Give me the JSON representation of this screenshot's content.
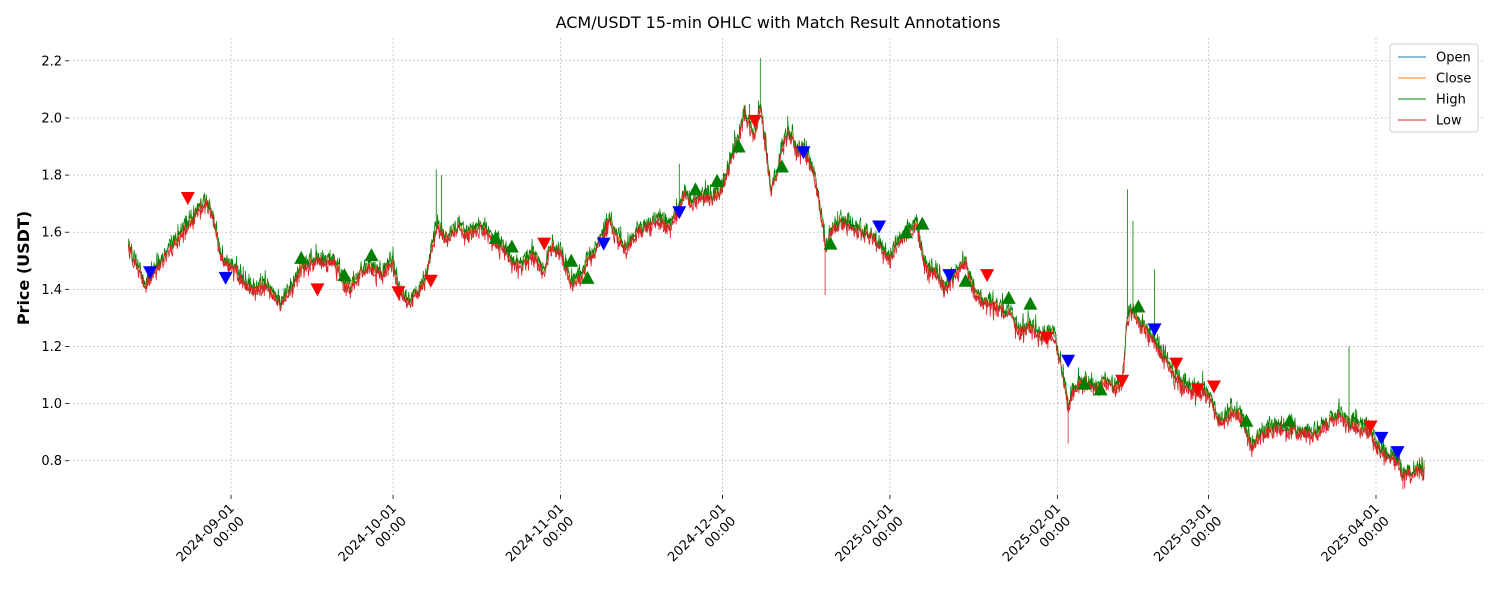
{
  "chart_data": {
    "type": "line",
    "title": "ACM/USDT 15-min OHLC with Match Result Annotations",
    "xlabel": "",
    "ylabel": "Price (USDT)",
    "xlim": [
      "2024-08-02",
      "2025-04-21"
    ],
    "ylim": [
      0.68,
      2.28
    ],
    "y_ticks": [
      0.8,
      1.0,
      1.2,
      1.4,
      1.6,
      1.8,
      2.0,
      2.2
    ],
    "y_tick_labels": [
      "0.8",
      "1.0",
      "1.2",
      "1.4",
      "1.6",
      "1.8",
      "2.0",
      "2.2"
    ],
    "x_ticks": [
      "2024-09-01",
      "2024-10-01",
      "2024-11-01",
      "2024-12-01",
      "2025-01-01",
      "2025-02-01",
      "2025-03-01",
      "2025-04-01"
    ],
    "x_tick_labels": [
      [
        "2024-09-01",
        "00:00"
      ],
      [
        "2024-10-01",
        "00:00"
      ],
      [
        "2024-11-01",
        "00:00"
      ],
      [
        "2024-12-01",
        "00:00"
      ],
      [
        "2025-01-01",
        "00:00"
      ],
      [
        "2025-02-01",
        "00:00"
      ],
      [
        "2025-03-01",
        "00:00"
      ],
      [
        "2025-04-01",
        "00:00"
      ]
    ],
    "grid": true,
    "legend_position": "top-right",
    "series": [
      {
        "name": "Open",
        "color": "#1f77b4"
      },
      {
        "name": "Close",
        "color": "#ff7f0e"
      },
      {
        "name": "High",
        "color": "#008000"
      },
      {
        "name": "Low",
        "color": "#d62728"
      }
    ],
    "price_path": [
      [
        "2024-08-13",
        1.55
      ],
      [
        "2024-08-14",
        1.5
      ],
      [
        "2024-08-15",
        1.47
      ],
      [
        "2024-08-16",
        1.42
      ],
      [
        "2024-08-17",
        1.45
      ],
      [
        "2024-08-18",
        1.47
      ],
      [
        "2024-08-19",
        1.5
      ],
      [
        "2024-08-21",
        1.55
      ],
      [
        "2024-08-23",
        1.6
      ],
      [
        "2024-08-25",
        1.65
      ],
      [
        "2024-08-26",
        1.68
      ],
      [
        "2024-08-27",
        1.71
      ],
      [
        "2024-08-28",
        1.69
      ],
      [
        "2024-08-29",
        1.62
      ],
      [
        "2024-08-30",
        1.53
      ],
      [
        "2024-08-31",
        1.49
      ],
      [
        "2024-09-02",
        1.47
      ],
      [
        "2024-09-03",
        1.43
      ],
      [
        "2024-09-05",
        1.39
      ],
      [
        "2024-09-07",
        1.42
      ],
      [
        "2024-09-09",
        1.38
      ],
      [
        "2024-09-10",
        1.34
      ],
      [
        "2024-09-12",
        1.4
      ],
      [
        "2024-09-14",
        1.47
      ],
      [
        "2024-09-16",
        1.5
      ],
      [
        "2024-09-18",
        1.5
      ],
      [
        "2024-09-20",
        1.51
      ],
      [
        "2024-09-22",
        1.42
      ],
      [
        "2024-09-23",
        1.4
      ],
      [
        "2024-09-25",
        1.46
      ],
      [
        "2024-09-27",
        1.48
      ],
      [
        "2024-09-29",
        1.45
      ],
      [
        "2024-10-01",
        1.5
      ],
      [
        "2024-10-02",
        1.4
      ],
      [
        "2024-10-04",
        1.36
      ],
      [
        "2024-10-06",
        1.4
      ],
      [
        "2024-10-07",
        1.43
      ],
      [
        "2024-10-08",
        1.52
      ],
      [
        "2024-10-09",
        1.62
      ],
      [
        "2024-10-11",
        1.58
      ],
      [
        "2024-10-13",
        1.62
      ],
      [
        "2024-10-15",
        1.59
      ],
      [
        "2024-10-17",
        1.62
      ],
      [
        "2024-10-19",
        1.58
      ],
      [
        "2024-10-21",
        1.55
      ],
      [
        "2024-10-23",
        1.5
      ],
      [
        "2024-10-25",
        1.48
      ],
      [
        "2024-10-27",
        1.52
      ],
      [
        "2024-10-29",
        1.46
      ],
      [
        "2024-10-30",
        1.55
      ],
      [
        "2024-11-01",
        1.53
      ],
      [
        "2024-11-02",
        1.48
      ],
      [
        "2024-11-03",
        1.42
      ],
      [
        "2024-11-05",
        1.45
      ],
      [
        "2024-11-06",
        1.5
      ],
      [
        "2024-11-08",
        1.55
      ],
      [
        "2024-11-09",
        1.6
      ],
      [
        "2024-11-10",
        1.65
      ],
      [
        "2024-11-11",
        1.6
      ],
      [
        "2024-11-13",
        1.55
      ],
      [
        "2024-11-15",
        1.6
      ],
      [
        "2024-11-17",
        1.62
      ],
      [
        "2024-11-19",
        1.65
      ],
      [
        "2024-11-21",
        1.62
      ],
      [
        "2024-11-23",
        1.68
      ],
      [
        "2024-11-24",
        1.75
      ],
      [
        "2024-11-25",
        1.7
      ],
      [
        "2024-11-27",
        1.73
      ],
      [
        "2024-11-29",
        1.72
      ],
      [
        "2024-12-01",
        1.75
      ],
      [
        "2024-12-02",
        1.82
      ],
      [
        "2024-12-03",
        1.88
      ],
      [
        "2024-12-04",
        1.93
      ],
      [
        "2024-12-05",
        2.02
      ],
      [
        "2024-12-06",
        1.97
      ],
      [
        "2024-12-07",
        1.95
      ],
      [
        "2024-12-08",
        2.05
      ],
      [
        "2024-12-09",
        1.9
      ],
      [
        "2024-12-10",
        1.75
      ],
      [
        "2024-12-11",
        1.8
      ],
      [
        "2024-12-12",
        1.9
      ],
      [
        "2024-12-13",
        1.95
      ],
      [
        "2024-12-14",
        1.92
      ],
      [
        "2024-12-15",
        1.88
      ],
      [
        "2024-12-16",
        1.9
      ],
      [
        "2024-12-17",
        1.85
      ],
      [
        "2024-12-18",
        1.8
      ],
      [
        "2024-12-19",
        1.7
      ],
      [
        "2024-12-20",
        1.55
      ],
      [
        "2024-12-21",
        1.6
      ],
      [
        "2024-12-23",
        1.63
      ],
      [
        "2024-12-25",
        1.62
      ],
      [
        "2024-12-27",
        1.6
      ],
      [
        "2024-12-29",
        1.58
      ],
      [
        "2024-12-31",
        1.53
      ],
      [
        "2025-01-01",
        1.5
      ],
      [
        "2025-01-02",
        1.56
      ],
      [
        "2025-01-04",
        1.6
      ],
      [
        "2025-01-06",
        1.63
      ],
      [
        "2025-01-07",
        1.52
      ],
      [
        "2025-01-08",
        1.47
      ],
      [
        "2025-01-10",
        1.45
      ],
      [
        "2025-01-11",
        1.4
      ],
      [
        "2025-01-13",
        1.45
      ],
      [
        "2025-01-15",
        1.5
      ],
      [
        "2025-01-16",
        1.42
      ],
      [
        "2025-01-17",
        1.38
      ],
      [
        "2025-01-19",
        1.35
      ],
      [
        "2025-01-21",
        1.33
      ],
      [
        "2025-01-23",
        1.32
      ],
      [
        "2025-01-25",
        1.25
      ],
      [
        "2025-01-27",
        1.27
      ],
      [
        "2025-01-29",
        1.23
      ],
      [
        "2025-01-31",
        1.25
      ],
      [
        "2025-02-01",
        1.2
      ],
      [
        "2025-02-02",
        1.1
      ],
      [
        "2025-02-03",
        1.0
      ],
      [
        "2025-02-04",
        1.05
      ],
      [
        "2025-02-06",
        1.08
      ],
      [
        "2025-02-08",
        1.05
      ],
      [
        "2025-02-10",
        1.08
      ],
      [
        "2025-02-12",
        1.05
      ],
      [
        "2025-02-13",
        1.07
      ],
      [
        "2025-02-14",
        1.3
      ],
      [
        "2025-02-15",
        1.33
      ],
      [
        "2025-02-16",
        1.28
      ],
      [
        "2025-02-18",
        1.25
      ],
      [
        "2025-02-20",
        1.18
      ],
      [
        "2025-02-22",
        1.12
      ],
      [
        "2025-02-24",
        1.07
      ],
      [
        "2025-02-26",
        1.04
      ],
      [
        "2025-02-28",
        1.05
      ],
      [
        "2025-03-01",
        1.03
      ],
      [
        "2025-03-03",
        0.93
      ],
      [
        "2025-03-05",
        0.97
      ],
      [
        "2025-03-07",
        0.96
      ],
      [
        "2025-03-09",
        0.85
      ],
      [
        "2025-03-11",
        0.89
      ],
      [
        "2025-03-13",
        0.92
      ],
      [
        "2025-03-15",
        0.91
      ],
      [
        "2025-03-17",
        0.91
      ],
      [
        "2025-03-19",
        0.9
      ],
      [
        "2025-03-21",
        0.9
      ],
      [
        "2025-03-23",
        0.93
      ],
      [
        "2025-03-25",
        0.96
      ],
      [
        "2025-03-27",
        0.93
      ],
      [
        "2025-03-29",
        0.92
      ],
      [
        "2025-03-31",
        0.9
      ],
      [
        "2025-04-01",
        0.86
      ],
      [
        "2025-04-03",
        0.82
      ],
      [
        "2025-04-05",
        0.8
      ],
      [
        "2025-04-06",
        0.74
      ],
      [
        "2025-04-07",
        0.76
      ],
      [
        "2025-04-09",
        0.77
      ],
      [
        "2025-04-10",
        0.77
      ]
    ],
    "spikes": [
      [
        "2024-10-09",
        1.82
      ],
      [
        "2024-10-10",
        1.8
      ],
      [
        "2024-12-08",
        2.21
      ],
      [
        "2024-12-06",
        2.05
      ],
      [
        "2024-11-23",
        1.84
      ],
      [
        "2025-02-14",
        1.75
      ],
      [
        "2025-02-15",
        1.64
      ],
      [
        "2025-02-19",
        1.47
      ],
      [
        "2025-03-27",
        1.2
      ],
      [
        "2024-12-20",
        1.38
      ],
      [
        "2025-02-03",
        0.86
      ],
      [
        "2025-04-06",
        0.7
      ]
    ],
    "markers": [
      {
        "date": "2024-08-17",
        "price": 1.46,
        "shape": "down",
        "color": "#0000ff"
      },
      {
        "date": "2024-08-24",
        "price": 1.72,
        "shape": "down",
        "color": "#ff0000"
      },
      {
        "date": "2024-08-31",
        "price": 1.44,
        "shape": "down",
        "color": "#0000ff"
      },
      {
        "date": "2024-09-14",
        "price": 1.51,
        "shape": "up",
        "color": "#008000"
      },
      {
        "date": "2024-09-17",
        "price": 1.4,
        "shape": "down",
        "color": "#ff0000"
      },
      {
        "date": "2024-09-22",
        "price": 1.45,
        "shape": "up",
        "color": "#008000"
      },
      {
        "date": "2024-09-27",
        "price": 1.52,
        "shape": "up",
        "color": "#008000"
      },
      {
        "date": "2024-10-02",
        "price": 1.39,
        "shape": "down",
        "color": "#ff0000"
      },
      {
        "date": "2024-10-08",
        "price": 1.43,
        "shape": "down",
        "color": "#ff0000"
      },
      {
        "date": "2024-10-20",
        "price": 1.58,
        "shape": "up",
        "color": "#008000"
      },
      {
        "date": "2024-10-23",
        "price": 1.55,
        "shape": "up",
        "color": "#008000"
      },
      {
        "date": "2024-10-29",
        "price": 1.56,
        "shape": "down",
        "color": "#ff0000"
      },
      {
        "date": "2024-11-03",
        "price": 1.5,
        "shape": "up",
        "color": "#008000"
      },
      {
        "date": "2024-11-06",
        "price": 1.44,
        "shape": "up",
        "color": "#008000"
      },
      {
        "date": "2024-11-09",
        "price": 1.56,
        "shape": "down",
        "color": "#0000ff"
      },
      {
        "date": "2024-11-23",
        "price": 1.67,
        "shape": "down",
        "color": "#0000ff"
      },
      {
        "date": "2024-11-26",
        "price": 1.75,
        "shape": "up",
        "color": "#008000"
      },
      {
        "date": "2024-11-30",
        "price": 1.78,
        "shape": "up",
        "color": "#008000"
      },
      {
        "date": "2024-12-04",
        "price": 1.9,
        "shape": "up",
        "color": "#008000"
      },
      {
        "date": "2024-12-07",
        "price": 1.99,
        "shape": "down",
        "color": "#ff0000"
      },
      {
        "date": "2024-12-12",
        "price": 1.83,
        "shape": "up",
        "color": "#008000"
      },
      {
        "date": "2024-12-16",
        "price": 1.88,
        "shape": "down",
        "color": "#0000ff"
      },
      {
        "date": "2024-12-21",
        "price": 1.56,
        "shape": "up",
        "color": "#008000"
      },
      {
        "date": "2024-12-30",
        "price": 1.62,
        "shape": "down",
        "color": "#0000ff"
      },
      {
        "date": "2025-01-04",
        "price": 1.6,
        "shape": "up",
        "color": "#008000"
      },
      {
        "date": "2025-01-07",
        "price": 1.63,
        "shape": "up",
        "color": "#008000"
      },
      {
        "date": "2025-01-12",
        "price": 1.45,
        "shape": "down",
        "color": "#0000ff"
      },
      {
        "date": "2025-01-15",
        "price": 1.43,
        "shape": "up",
        "color": "#008000"
      },
      {
        "date": "2025-01-19",
        "price": 1.45,
        "shape": "down",
        "color": "#ff0000"
      },
      {
        "date": "2025-01-23",
        "price": 1.37,
        "shape": "up",
        "color": "#008000"
      },
      {
        "date": "2025-01-27",
        "price": 1.35,
        "shape": "up",
        "color": "#008000"
      },
      {
        "date": "2025-01-30",
        "price": 1.23,
        "shape": "down",
        "color": "#ff0000"
      },
      {
        "date": "2025-02-03",
        "price": 1.15,
        "shape": "down",
        "color": "#0000ff"
      },
      {
        "date": "2025-02-06",
        "price": 1.07,
        "shape": "up",
        "color": "#008000"
      },
      {
        "date": "2025-02-09",
        "price": 1.05,
        "shape": "up",
        "color": "#008000"
      },
      {
        "date": "2025-02-13",
        "price": 1.08,
        "shape": "down",
        "color": "#ff0000"
      },
      {
        "date": "2025-02-16",
        "price": 1.34,
        "shape": "up",
        "color": "#008000"
      },
      {
        "date": "2025-02-19",
        "price": 1.26,
        "shape": "down",
        "color": "#0000ff"
      },
      {
        "date": "2025-02-23",
        "price": 1.14,
        "shape": "down",
        "color": "#ff0000"
      },
      {
        "date": "2025-02-27",
        "price": 1.05,
        "shape": "down",
        "color": "#ff0000"
      },
      {
        "date": "2025-03-02",
        "price": 1.06,
        "shape": "down",
        "color": "#ff0000"
      },
      {
        "date": "2025-03-08",
        "price": 0.94,
        "shape": "up",
        "color": "#008000"
      },
      {
        "date": "2025-03-16",
        "price": 0.94,
        "shape": "up",
        "color": "#008000"
      },
      {
        "date": "2025-03-31",
        "price": 0.92,
        "shape": "down",
        "color": "#ff0000"
      },
      {
        "date": "2025-04-02",
        "price": 0.88,
        "shape": "down",
        "color": "#0000ff"
      },
      {
        "date": "2025-04-05",
        "price": 0.83,
        "shape": "down",
        "color": "#0000ff"
      }
    ]
  }
}
